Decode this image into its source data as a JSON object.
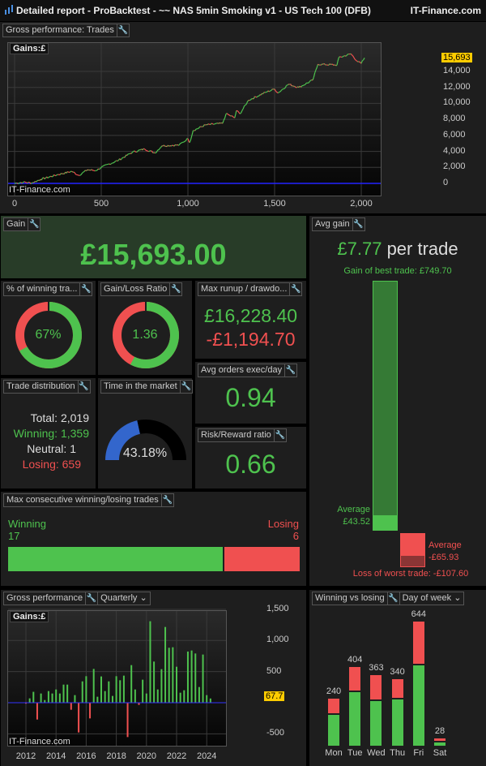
{
  "window": {
    "title": "Detailed report - ProBacktest - ~~ NAS 5min Smoking v1 - US Tech 100 (DFB)",
    "brand": "IT-Finance.com"
  },
  "colors": {
    "green": "#4ec24e",
    "red": "#f05050",
    "blue": "#3366cc",
    "badge": "#ffcc00"
  },
  "equity": {
    "header": "Gross performance: Trades",
    "gains_label": "Gains:£",
    "watermark": "IT-Finance.com",
    "last_value": "15,693"
  },
  "gain": {
    "header": "Gain",
    "value": "£15,693.00"
  },
  "winning_pct": {
    "header": "% of winning tra...",
    "value": "67%",
    "fraction": 0.67
  },
  "gain_loss": {
    "header": "Gain/Loss Ratio",
    "value": "1.36",
    "fraction": 0.576
  },
  "runup": {
    "header": "Max runup / drawdo...",
    "runup": "£16,228.40",
    "drawdown": "-£1,194.70"
  },
  "avg_orders": {
    "header": "Avg orders exec/day",
    "value": "0.94"
  },
  "risk_reward": {
    "header": "Risk/Reward ratio",
    "value": "0.66"
  },
  "distribution": {
    "header": "Trade distribution",
    "total_label": "Total:",
    "total": "2,019",
    "win_label": "Winning:",
    "win": "1,359",
    "neutral_label": "Neutral:",
    "neutral": "1",
    "lose_label": "Losing:",
    "lose": "659"
  },
  "time_market": {
    "header": "Time in the market",
    "value": "43.18%",
    "fraction": 0.4318
  },
  "avg_gain": {
    "header": "Avg gain",
    "value": "£7.77",
    "suffix": "per trade",
    "best": "Gain of best trade: £749.70",
    "avg_win_label": "Average",
    "avg_win": "£43.52",
    "avg_loss_label": "Average",
    "avg_loss": "-£65.93",
    "worst": "Loss of worst trade: -£107.60",
    "best_num": 749.7,
    "avg_win_num": 43.52,
    "avg_loss_num": 65.93,
    "worst_num": 107.6
  },
  "consecutive": {
    "header": "Max consecutive winning/losing trades",
    "win_label": "Winning",
    "win": "17",
    "lose_label": "Losing",
    "lose": "6",
    "win_num": 17,
    "lose_num": 6
  },
  "quarterly": {
    "header": "Gross performance",
    "period": "Quarterly",
    "gains_label": "Gains:£",
    "watermark": "IT-Finance.com",
    "last_value": "67.7"
  },
  "weekday": {
    "header": "Winning vs losing",
    "period": "Day of week"
  },
  "chart_data": [
    {
      "type": "line",
      "title": "Gross performance: Trades",
      "xlabel": "Trades",
      "ylabel": "Gains £",
      "xlim": [
        0,
        2100
      ],
      "ylim": [
        -1000,
        17000
      ],
      "x_ticks": [
        "0",
        "500",
        "1,000",
        "1,500",
        "2,000"
      ],
      "y_ticks": [
        "0",
        "2,000",
        "4,000",
        "6,000",
        "8,000",
        "10,000",
        "12,000",
        "14,000"
      ],
      "points": [
        [
          0,
          0
        ],
        [
          50,
          150
        ],
        [
          100,
          50
        ],
        [
          150,
          500
        ],
        [
          250,
          1100
        ],
        [
          330,
          1500
        ],
        [
          370,
          1000
        ],
        [
          420,
          1700
        ],
        [
          470,
          1600
        ],
        [
          500,
          2000
        ],
        [
          600,
          2900
        ],
        [
          680,
          3900
        ],
        [
          750,
          4300
        ],
        [
          810,
          3800
        ],
        [
          850,
          4700
        ],
        [
          950,
          4800
        ],
        [
          1000,
          5600
        ],
        [
          1010,
          5100
        ],
        [
          1030,
          6600
        ],
        [
          1100,
          7300
        ],
        [
          1200,
          7500
        ],
        [
          1220,
          8700
        ],
        [
          1270,
          8200
        ],
        [
          1280,
          9100
        ],
        [
          1300,
          8700
        ],
        [
          1350,
          10400
        ],
        [
          1450,
          11400
        ],
        [
          1500,
          11800
        ],
        [
          1520,
          11300
        ],
        [
          1580,
          12400
        ],
        [
          1640,
          12000
        ],
        [
          1720,
          12900
        ],
        [
          1750,
          14900
        ],
        [
          1860,
          14800
        ],
        [
          1870,
          15700
        ],
        [
          1940,
          16200
        ],
        [
          1980,
          15200
        ],
        [
          2000,
          15000
        ],
        [
          2019,
          15693
        ]
      ]
    },
    {
      "type": "bar",
      "title": "Gross performance Quarterly",
      "ylabel": "Gains £",
      "ylim": [
        -700,
        1600
      ],
      "start_year": 2012,
      "x_ticks": [
        "2012",
        "2014",
        "2016",
        "2018",
        "2020",
        "2022",
        "2024"
      ],
      "y_ticks": [
        "1,500",
        "1,000",
        "500",
        "-500"
      ],
      "values": [
        -15,
        70,
        175,
        -270,
        148,
        43,
        187,
        148,
        213,
        148,
        291,
        291,
        -113,
        122,
        -478,
        343,
        426,
        -252,
        543,
        96,
        422,
        187,
        343,
        109,
        426,
        361,
        435,
        -552,
        604,
        213,
        -35,
        370,
        148,
        1309,
        661,
        213,
        539,
        1217,
        883,
        891,
        578,
        161,
        200,
        822,
        839,
        791,
        252,
        774,
        122,
        68
      ]
    },
    {
      "type": "bar",
      "title": "Winning vs losing",
      "categories": [
        "Mon",
        "Tue",
        "Wed",
        "Thu",
        "Fri",
        "Sat"
      ],
      "series": [
        {
          "name": "Winning",
          "values": [
            161,
            280,
            235,
            243,
            425,
            15
          ]
        },
        {
          "name": "Losing",
          "values": [
            79,
            124,
            128,
            97,
            219,
            13
          ]
        }
      ],
      "totals": [
        "240",
        "404",
        "363",
        "340",
        "644",
        "28"
      ]
    }
  ]
}
